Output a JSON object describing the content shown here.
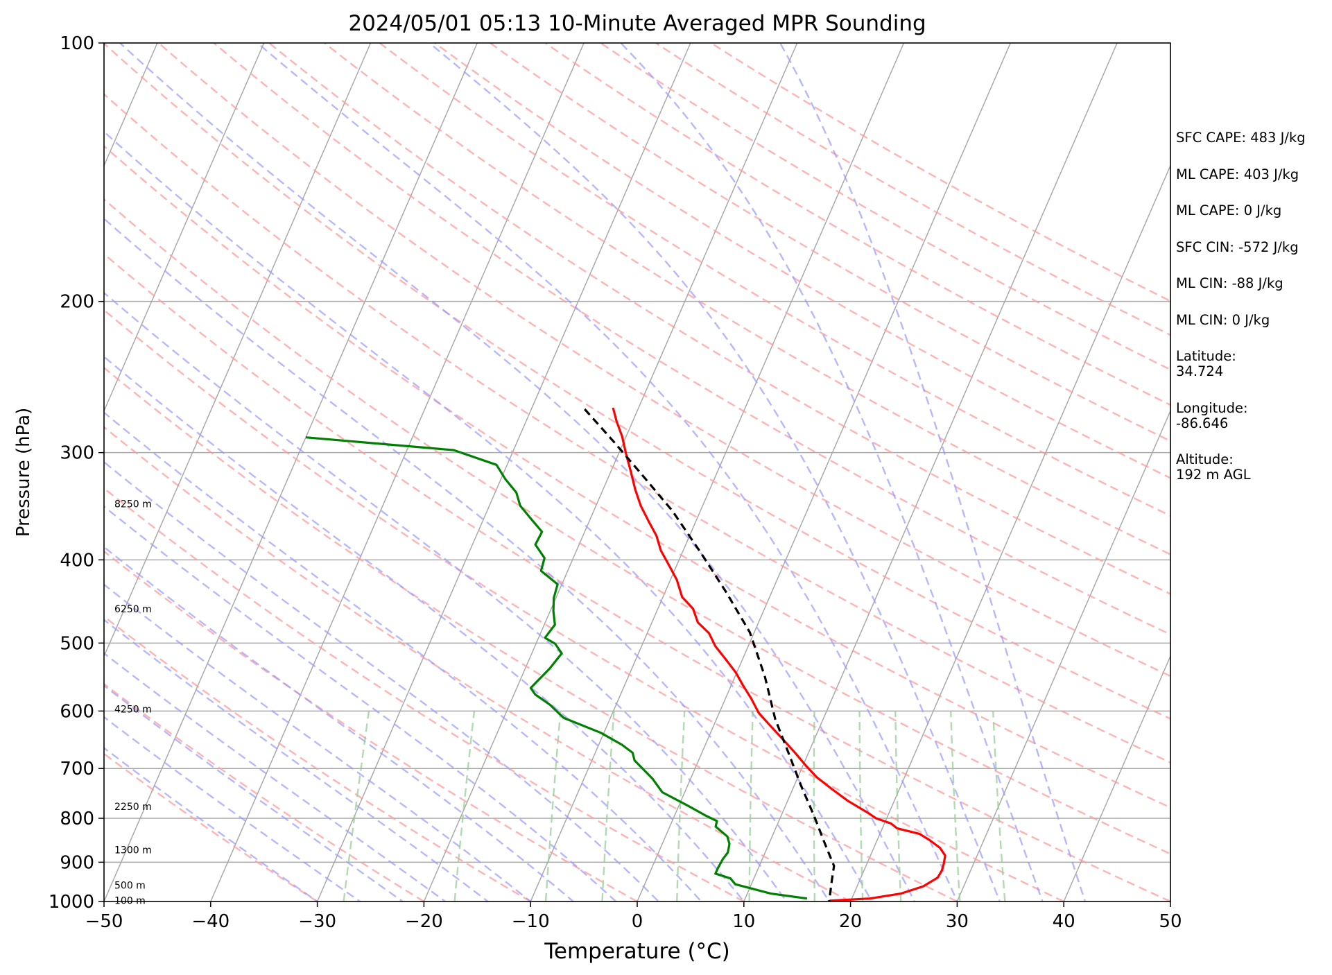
{
  "chart_data": {
    "type": "line",
    "title": "2024/05/01 05:13 10-Minute Averaged MPR Sounding",
    "xlabel": "Temperature (°C)",
    "ylabel": "Pressure (hPa)",
    "xlim": [
      -50,
      50
    ],
    "ylim": [
      1000,
      100
    ],
    "y_scale": "log",
    "skew": 35,
    "grid": true,
    "x_ticks": [
      "−50",
      "−40",
      "−30",
      "−20",
      "−10",
      "0",
      "10",
      "20",
      "30",
      "40",
      "50"
    ],
    "x_tick_values": [
      -50,
      -40,
      -30,
      -20,
      -10,
      0,
      10,
      20,
      30,
      40,
      50
    ],
    "y_ticks": [
      "100",
      "200",
      "300",
      "400",
      "500",
      "600",
      "700",
      "800",
      "900",
      "1000"
    ],
    "y_tick_values": [
      100,
      200,
      300,
      400,
      500,
      600,
      700,
      800,
      900,
      1000
    ],
    "height_labels": [
      {
        "text": "8250 m",
        "pressure": 344
      },
      {
        "text": "6250 m",
        "pressure": 456
      },
      {
        "text": "4250 m",
        "pressure": 597
      },
      {
        "text": "2250 m",
        "pressure": 775
      },
      {
        "text": "1300 m",
        "pressure": 871
      },
      {
        "text": "500 m",
        "pressure": 957
      },
      {
        "text": "100 m",
        "pressure": 997
      }
    ],
    "series": [
      {
        "color": "#ff0000",
        "style": "solid",
        "points": [
          [
            -22.4,
            266
          ],
          [
            -21.5,
            276
          ],
          [
            -20.4,
            287
          ],
          [
            -19.3,
            301
          ],
          [
            -18.1,
            316
          ],
          [
            -17.0,
            331
          ],
          [
            -15.8,
            346
          ],
          [
            -14.4,
            361
          ],
          [
            -13.1,
            375
          ],
          [
            -12.1,
            390
          ],
          [
            -10.8,
            405
          ],
          [
            -9.4,
            422
          ],
          [
            -8.2,
            442
          ],
          [
            -6.7,
            456
          ],
          [
            -5.7,
            473
          ],
          [
            -4.2,
            487
          ],
          [
            -3.1,
            504
          ],
          [
            -1.6,
            522
          ],
          [
            -0.1,
            541
          ],
          [
            1.1,
            560
          ],
          [
            2.4,
            580
          ],
          [
            3.7,
            603
          ],
          [
            5.3,
            624
          ],
          [
            7.1,
            648
          ],
          [
            8.8,
            672
          ],
          [
            10.3,
            695
          ],
          [
            11.8,
            717
          ],
          [
            13.7,
            740
          ],
          [
            15.7,
            764
          ],
          [
            17.9,
            787
          ],
          [
            19.0,
            800
          ],
          [
            20.6,
            811
          ],
          [
            21.4,
            822
          ],
          [
            23.7,
            834
          ],
          [
            24.9,
            848
          ],
          [
            26.2,
            866
          ],
          [
            27.0,
            884
          ],
          [
            27.2,
            903
          ],
          [
            27.3,
            920
          ],
          [
            27.2,
            938
          ],
          [
            26.2,
            960
          ],
          [
            24.4,
            979
          ],
          [
            21.7,
            992
          ],
          [
            18.0,
            998
          ]
        ]
      },
      {
        "color": "#008000",
        "style": "solid",
        "points": [
          [
            -50.0,
            288
          ],
          [
            -35.6,
            298
          ],
          [
            -31.0,
            310
          ],
          [
            -29.6,
            322
          ],
          [
            -28.0,
            334
          ],
          [
            -27.1,
            346
          ],
          [
            -25.6,
            358
          ],
          [
            -24.0,
            371
          ],
          [
            -24.1,
            384
          ],
          [
            -22.7,
            398
          ],
          [
            -22.5,
            412
          ],
          [
            -20.4,
            427
          ],
          [
            -20.2,
            443
          ],
          [
            -19.7,
            459
          ],
          [
            -19.0,
            476
          ],
          [
            -19.4,
            493
          ],
          [
            -18.2,
            501
          ],
          [
            -17.2,
            514
          ],
          [
            -17.7,
            535
          ],
          [
            -18.7,
            564
          ],
          [
            -18.0,
            574
          ],
          [
            -16.2,
            590
          ],
          [
            -14.4,
            611
          ],
          [
            -10.3,
            636
          ],
          [
            -7.8,
            657
          ],
          [
            -6.5,
            671
          ],
          [
            -6.0,
            685
          ],
          [
            -3.6,
            719
          ],
          [
            -2.1,
            746
          ],
          [
            0.8,
            773
          ],
          [
            2.9,
            794
          ],
          [
            4.2,
            806
          ],
          [
            4.3,
            818
          ],
          [
            5.8,
            840
          ],
          [
            6.3,
            857
          ],
          [
            6.5,
            877
          ],
          [
            6.3,
            892
          ],
          [
            6.2,
            914
          ],
          [
            6.2,
            928
          ],
          [
            7.8,
            940
          ],
          [
            8.5,
            955
          ],
          [
            12.2,
            979
          ],
          [
            15.8,
            992
          ]
        ]
      },
      {
        "color": "#000000",
        "style": "dashed",
        "points": [
          [
            -25.0,
            267
          ],
          [
            -21.0,
            291
          ],
          [
            -17.0,
            318
          ],
          [
            -12.6,
            351
          ],
          [
            -8.3,
            392
          ],
          [
            -4.2,
            437
          ],
          [
            -0.4,
            486
          ],
          [
            2.8,
            547
          ],
          [
            5.5,
            613
          ],
          [
            8.2,
            673
          ],
          [
            10.6,
            732
          ],
          [
            13.1,
            795
          ],
          [
            15.3,
            858
          ],
          [
            17.0,
            909
          ],
          [
            17.4,
            946
          ],
          [
            18.0,
            1000
          ]
        ]
      }
    ],
    "background_lines": {
      "isotherm_color": "#a9a9a9",
      "dry_adiabat_color": "#ff9999",
      "moist_adiabat_color": "#9999ff",
      "mixing_ratio_color": "#99cc99"
    }
  },
  "info": {
    "sfc_cape": "SFC CAPE: 483 J/kg",
    "ml_cape": "ML CAPE: 403 J/kg",
    "ml_cape2": "ML CAPE: 0 J/kg",
    "sfc_cin": "SFC CIN: -572 J/kg",
    "ml_cin": "ML CIN: -88 J/kg",
    "ml_cin2": "ML CIN: 0 J/kg",
    "latitude": "Latitude:\n34.724",
    "longitude": "Longitude:\n-86.646",
    "altitude": "Altitude:\n192 m AGL"
  }
}
